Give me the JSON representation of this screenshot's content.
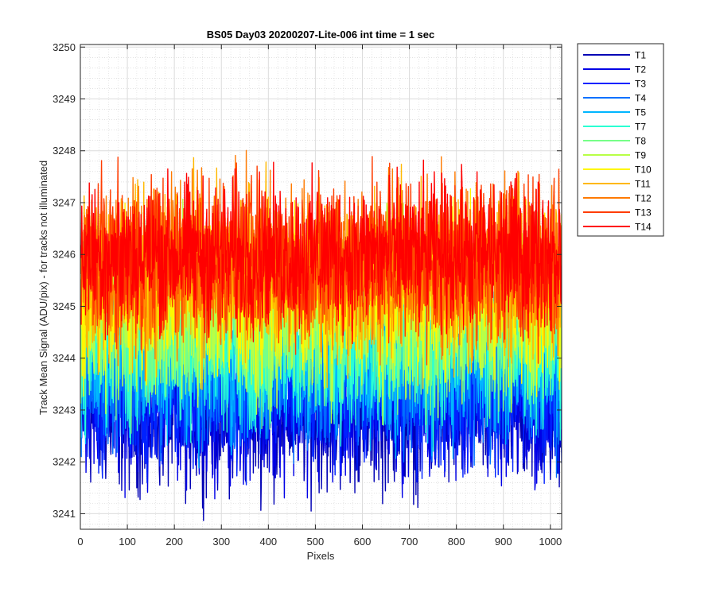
{
  "chart_data": {
    "type": "line",
    "title": "BS05 Day03 20200207-Lite-006 int time = 1 sec",
    "xlabel": "Pixels",
    "ylabel": "Track Mean Signal (ADU/pix) - for tracks not illuminated",
    "xlim": [
      0,
      1024
    ],
    "ylim": [
      3240.7,
      3250.05
    ],
    "xticks": [
      0,
      100,
      200,
      300,
      400,
      500,
      600,
      700,
      800,
      900,
      1000
    ],
    "yticks": [
      3241,
      3242,
      3243,
      3244,
      3245,
      3246,
      3247,
      3248,
      3249,
      3250
    ],
    "grid": "major and minor",
    "legend_location": "outside-top-right",
    "n_points": 1024,
    "series": [
      {
        "name": "T1",
        "color": "#0000B5",
        "center": 3243.0,
        "spread": 0.75
      },
      {
        "name": "T2",
        "color": "#0000E6",
        "center": 3243.2,
        "spread": 0.75
      },
      {
        "name": "T3",
        "color": "#0022FF",
        "center": 3243.4,
        "spread": 0.75
      },
      {
        "name": "T4",
        "color": "#0070FF",
        "center": 3243.8,
        "spread": 0.8
      },
      {
        "name": "T5",
        "color": "#00B6FF",
        "center": 3244.1,
        "spread": 0.8
      },
      {
        "name": "T7",
        "color": "#2BFFD3",
        "center": 3244.4,
        "spread": 0.8
      },
      {
        "name": "T8",
        "color": "#76FF88",
        "center": 3244.7,
        "spread": 0.8
      },
      {
        "name": "T9",
        "color": "#B8FF46",
        "center": 3245.0,
        "spread": 0.8
      },
      {
        "name": "T10",
        "color": "#FFF700",
        "center": 3245.3,
        "spread": 0.8
      },
      {
        "name": "T11",
        "color": "#FFB800",
        "center": 3245.6,
        "spread": 0.8
      },
      {
        "name": "T12",
        "color": "#FF7A00",
        "center": 3245.8,
        "spread": 0.8
      },
      {
        "name": "T13",
        "color": "#FF3C00",
        "center": 3245.9,
        "spread": 0.75
      },
      {
        "name": "T14",
        "color": "#FF0000",
        "center": 3246.0,
        "spread": 0.7
      }
    ]
  }
}
